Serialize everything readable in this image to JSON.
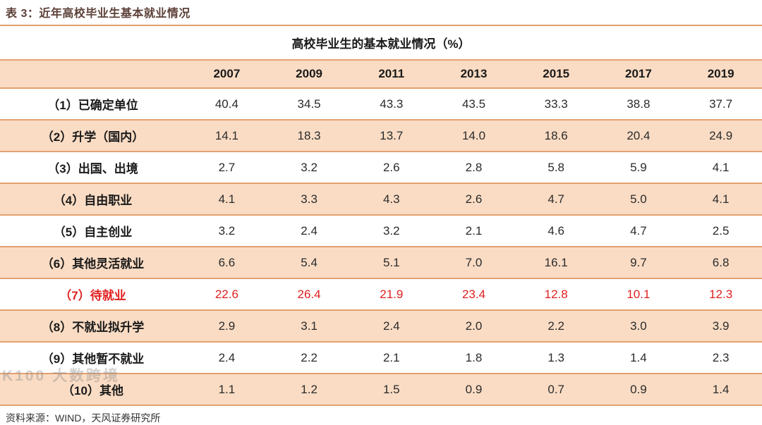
{
  "page": {
    "title": "表 3：近年高校毕业生基本就业情况",
    "source_note": "资料来源：WIND，天风证券研究所",
    "watermark": "K100 大数跨境"
  },
  "table": {
    "caption": "高校毕业生的基本就业情况（%）",
    "columns": [
      "2007",
      "2009",
      "2011",
      "2013",
      "2015",
      "2017",
      "2019"
    ],
    "rows": [
      {
        "label": "（1）已确定单位",
        "values": [
          "40.4",
          "34.5",
          "43.3",
          "43.5",
          "33.3",
          "38.8",
          "37.7"
        ],
        "highlight": false
      },
      {
        "label": "（2）升学（国内）",
        "values": [
          "14.1",
          "18.3",
          "13.7",
          "14.0",
          "18.6",
          "20.4",
          "24.9"
        ],
        "highlight": false
      },
      {
        "label": "（3）出国、出境",
        "values": [
          "2.7",
          "3.2",
          "2.6",
          "2.8",
          "5.8",
          "5.9",
          "4.1"
        ],
        "highlight": false
      },
      {
        "label": "（4）自由职业",
        "values": [
          "4.1",
          "3.3",
          "4.3",
          "2.6",
          "4.7",
          "5.0",
          "4.1"
        ],
        "highlight": false
      },
      {
        "label": "（5）自主创业",
        "values": [
          "3.2",
          "2.4",
          "3.2",
          "2.1",
          "4.6",
          "4.7",
          "2.5"
        ],
        "highlight": false
      },
      {
        "label": "（6）其他灵活就业",
        "values": [
          "6.6",
          "5.4",
          "5.1",
          "7.0",
          "16.1",
          "9.7",
          "6.8"
        ],
        "highlight": false
      },
      {
        "label": "（7）待就业",
        "values": [
          "22.6",
          "26.4",
          "21.9",
          "23.4",
          "12.8",
          "10.1",
          "12.3"
        ],
        "highlight": true
      },
      {
        "label": "（8）不就业拟升学",
        "values": [
          "2.9",
          "3.1",
          "2.4",
          "2.0",
          "2.2",
          "3.0",
          "3.9"
        ],
        "highlight": false
      },
      {
        "label": "（9）其他暂不就业",
        "values": [
          "2.4",
          "2.2",
          "2.1",
          "1.8",
          "1.3",
          "1.4",
          "2.3"
        ],
        "highlight": false
      },
      {
        "label": "（10）其他",
        "values": [
          "1.1",
          "1.2",
          "1.5",
          "0.9",
          "0.7",
          "0.9",
          "1.4"
        ],
        "highlight": false
      }
    ]
  },
  "colors": {
    "title_maroon": "#5C4038",
    "row_peach": "#FADCC4",
    "separator_orange": "#E2A170",
    "highlight_red": "#E01F1F"
  },
  "chart_data": {
    "type": "table",
    "title": "高校毕业生的基本就业情况（%）",
    "categories": [
      "2007",
      "2009",
      "2011",
      "2013",
      "2015",
      "2017",
      "2019"
    ],
    "series": [
      {
        "name": "（1）已确定单位",
        "values": [
          40.4,
          34.5,
          43.3,
          43.5,
          33.3,
          38.8,
          37.7
        ]
      },
      {
        "name": "（2）升学（国内）",
        "values": [
          14.1,
          18.3,
          13.7,
          14.0,
          18.6,
          20.4,
          24.9
        ]
      },
      {
        "name": "（3）出国、出境",
        "values": [
          2.7,
          3.2,
          2.6,
          2.8,
          5.8,
          5.9,
          4.1
        ]
      },
      {
        "name": "（4）自由职业",
        "values": [
          4.1,
          3.3,
          4.3,
          2.6,
          4.7,
          5.0,
          4.1
        ]
      },
      {
        "name": "（5）自主创业",
        "values": [
          3.2,
          2.4,
          3.2,
          2.1,
          4.6,
          4.7,
          2.5
        ]
      },
      {
        "name": "（6）其他灵活就业",
        "values": [
          6.6,
          5.4,
          5.1,
          7.0,
          16.1,
          9.7,
          6.8
        ]
      },
      {
        "name": "（7）待就业",
        "values": [
          22.6,
          26.4,
          21.9,
          23.4,
          12.8,
          10.1,
          12.3
        ]
      },
      {
        "name": "（8）不就业拟升学",
        "values": [
          2.9,
          3.1,
          2.4,
          2.0,
          2.2,
          3.0,
          3.9
        ]
      },
      {
        "name": "（9）其他暂不就业",
        "values": [
          2.4,
          2.2,
          2.1,
          1.8,
          1.3,
          1.4,
          2.3
        ]
      },
      {
        "name": "（10）其他",
        "values": [
          1.1,
          1.2,
          1.5,
          0.9,
          0.7,
          0.9,
          1.4
        ]
      }
    ]
  }
}
